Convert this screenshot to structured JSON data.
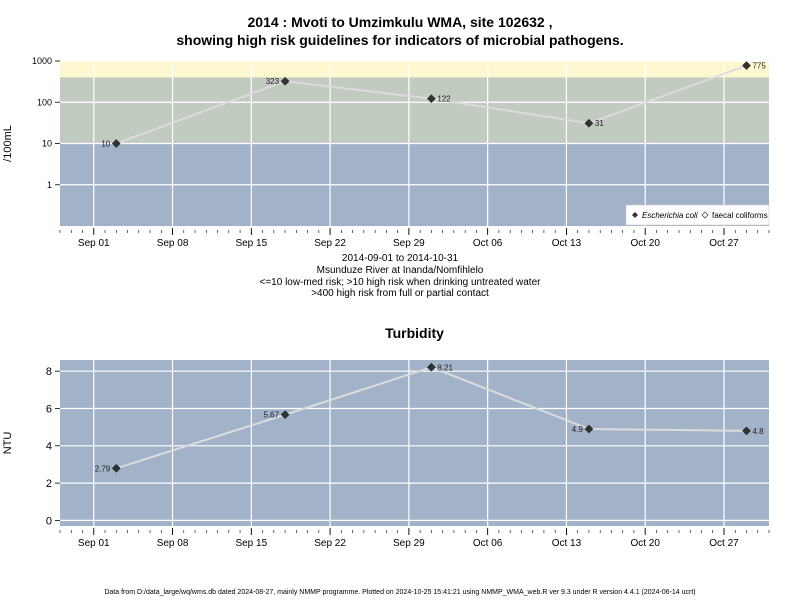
{
  "header": {
    "title_line1": "2014 : Mvoti to Umzimkulu WMA, site 102632 ,",
    "title_line2": "showing high risk guidelines for indicators of microbial pathogens."
  },
  "caption": {
    "line1": "2014-09-01 to 2014-10-31",
    "line2": "Msunduze River at Inanda/Nomfihlelo",
    "line3": "<=10 low-med risk; >10 high risk when drinking untreated water",
    "line4": ">400 high risk from full or partial contact"
  },
  "footer": {
    "text": "Data from D:/data_large/wq/wms.db dated 2024-08-27, mainly NMMP programme. Plotted on 2024-10-25 15:41:21 using NMMP_WMA_web.R ver 9.3 under R version 4.4.1 (2024-06-14 ucrt)"
  },
  "colors": {
    "panel_bg": "#a2b2c8",
    "high_risk_band": "#c1cbc0",
    "contact_risk_band": "#fdf8d0",
    "grid": "#ffffff",
    "line": "#dcdcdc",
    "point": "#333333"
  },
  "chart_data": [
    {
      "type": "line",
      "title": "",
      "xlabel": "",
      "ylabel": "/100mL",
      "y_scale": "log",
      "ylim": [
        0.1,
        1000
      ],
      "yticks": [
        1,
        10,
        100,
        1000
      ],
      "ytick_labels": [
        "1",
        "10",
        "100",
        "1000"
      ],
      "xlim": [
        "2014-08-29",
        "2014-10-31"
      ],
      "xticks": [
        "2014-09-01",
        "2014-09-08",
        "2014-09-15",
        "2014-09-22",
        "2014-09-29",
        "2014-10-06",
        "2014-10-13",
        "2014-10-20",
        "2014-10-27"
      ],
      "xtick_labels": [
        "Sep 01",
        "Sep 08",
        "Sep 15",
        "Sep 22",
        "Sep 29",
        "Oct 06",
        "Oct 13",
        "Oct 20",
        "Oct 27"
      ],
      "bands": [
        {
          "from": 10,
          "to": 400,
          "color": "#c1cbc0"
        },
        {
          "from": 400,
          "to": 1000,
          "color": "#fdf8d0"
        }
      ],
      "grid": true,
      "legend_position": "bottom-right",
      "series": [
        {
          "name": "Escherichia coli",
          "x": [
            "2014-09-03",
            "2014-09-18",
            "2014-10-01",
            "2014-10-15",
            "2014-10-29"
          ],
          "y": [
            10,
            323,
            122,
            31,
            775
          ],
          "labels": [
            "10",
            "323",
            "122",
            "31",
            "775"
          ]
        }
      ],
      "legend": [
        "Escherichia coli",
        "faecal coliforms"
      ]
    },
    {
      "type": "line",
      "title": "Turbidity",
      "xlabel": "",
      "ylabel": "NTU",
      "y_scale": "linear",
      "ylim": [
        -0.3,
        8.6
      ],
      "yticks": [
        0,
        2,
        4,
        6,
        8
      ],
      "ytick_labels": [
        "0",
        "2",
        "4",
        "6",
        "8"
      ],
      "xlim": [
        "2014-08-29",
        "2014-10-31"
      ],
      "xticks": [
        "2014-09-01",
        "2014-09-08",
        "2014-09-15",
        "2014-09-22",
        "2014-09-29",
        "2014-10-06",
        "2014-10-13",
        "2014-10-20",
        "2014-10-27"
      ],
      "xtick_labels": [
        "Sep 01",
        "Sep 08",
        "Sep 15",
        "Sep 22",
        "Sep 29",
        "Oct 06",
        "Oct 13",
        "Oct 20",
        "Oct 27"
      ],
      "grid": true,
      "series": [
        {
          "x": [
            "2014-09-03",
            "2014-09-18",
            "2014-10-01",
            "2014-10-15",
            "2014-10-29"
          ],
          "y": [
            2.79,
            5.67,
            8.21,
            4.9,
            4.8
          ],
          "labels": [
            "2.79",
            "5.67",
            "8.21",
            "4.9",
            "4.8"
          ]
        }
      ]
    }
  ]
}
